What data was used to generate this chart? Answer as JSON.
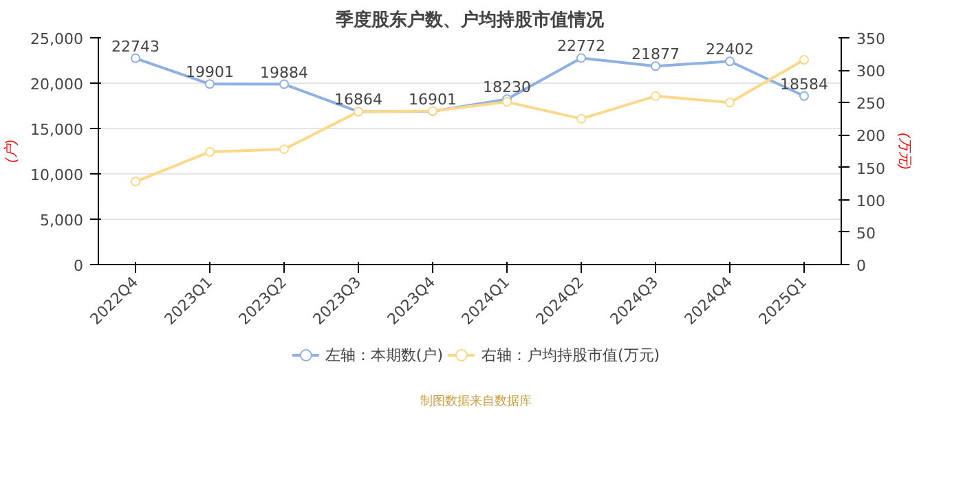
{
  "chart_data": {
    "type": "line",
    "title": "季度股东户数、户均持股市值情况",
    "categories": [
      "2022Q4",
      "2023Q1",
      "2023Q2",
      "2023Q3",
      "2023Q4",
      "2024Q1",
      "2024Q2",
      "2024Q3",
      "2024Q4",
      "2025Q1"
    ],
    "series": [
      {
        "name": "左轴：本期数(户)",
        "color": "#8fb0e3",
        "values": [
          22743,
          19901,
          19884,
          16864,
          16901,
          18230,
          22772,
          21877,
          22402,
          18584
        ],
        "value_labels": [
          "22743",
          "19901",
          "19884",
          "16864",
          "16901",
          "18230",
          "22772",
          "21877",
          "22402",
          "18584"
        ]
      },
      {
        "name": "右轴：户均持股市值(万元)",
        "color": "#fbd88a",
        "axis": "y2",
        "values": [
          128,
          174,
          178,
          236,
          237,
          251,
          225,
          260,
          250,
          316
        ]
      }
    ],
    "ylabel": "(户)",
    "y2label": "(万元)",
    "ylim": [
      0,
      25000
    ],
    "yticks": [
      {
        "value": 0,
        "label": "0"
      },
      {
        "value": 5000,
        "label": "5,000"
      },
      {
        "value": 10000,
        "label": "10,000"
      },
      {
        "value": 15000,
        "label": "15,000"
      },
      {
        "value": 20000,
        "label": "20,000"
      },
      {
        "value": 25000,
        "label": "25,000"
      }
    ],
    "y2lim": [
      0,
      350
    ],
    "y2ticks": [
      0,
      50,
      100,
      150,
      200,
      250,
      300,
      350
    ],
    "grid": "y",
    "legend": "bottom",
    "marker": "circle",
    "line_style": "solid",
    "annotations": [
      "制图数据来自数据库"
    ]
  }
}
